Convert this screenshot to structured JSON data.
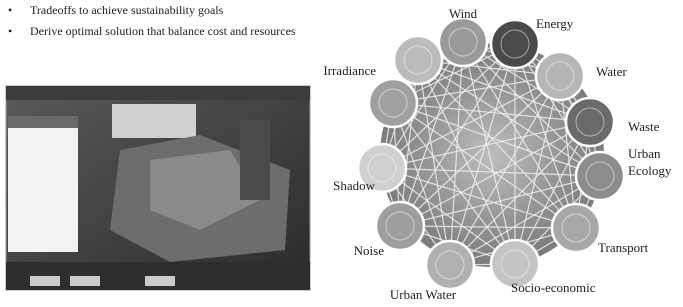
{
  "bullets": [
    "Tradeoffs to achieve sustainability goals",
    "Derive optimal solution that balance cost and resources"
  ],
  "nodes": [
    {
      "label": [
        "Wind"
      ]
    },
    {
      "label": [
        "Energy"
      ]
    },
    {
      "label": [
        "Water"
      ]
    },
    {
      "label": [
        "Waste"
      ]
    },
    {
      "label": [
        "Urban",
        "Ecology"
      ]
    },
    {
      "label": [
        "Transport"
      ]
    },
    {
      "label": [
        "Socio-economic"
      ]
    },
    {
      "label": [
        "Urban Water"
      ]
    },
    {
      "label": [
        "Noise"
      ]
    },
    {
      "label": [
        "Shadow"
      ]
    },
    {
      "label": [
        "Irradiance"
      ]
    }
  ]
}
